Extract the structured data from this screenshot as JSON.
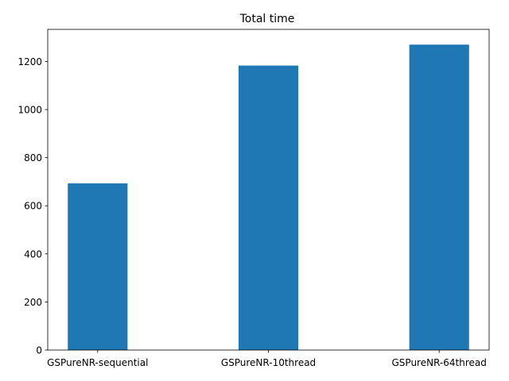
{
  "chart_data": {
    "type": "bar",
    "title": "Total time",
    "xlabel": "",
    "ylabel": "",
    "categories": [
      "GSPureNR-sequential",
      "GSPureNR-10thread",
      "GSPureNR-64thread"
    ],
    "values": [
      693,
      1183,
      1270
    ],
    "ylim": [
      0,
      1333.5
    ],
    "yticks": [
      0,
      200,
      400,
      600,
      800,
      1000,
      1200
    ],
    "grid": false,
    "bar_color": "#1f77b4"
  }
}
